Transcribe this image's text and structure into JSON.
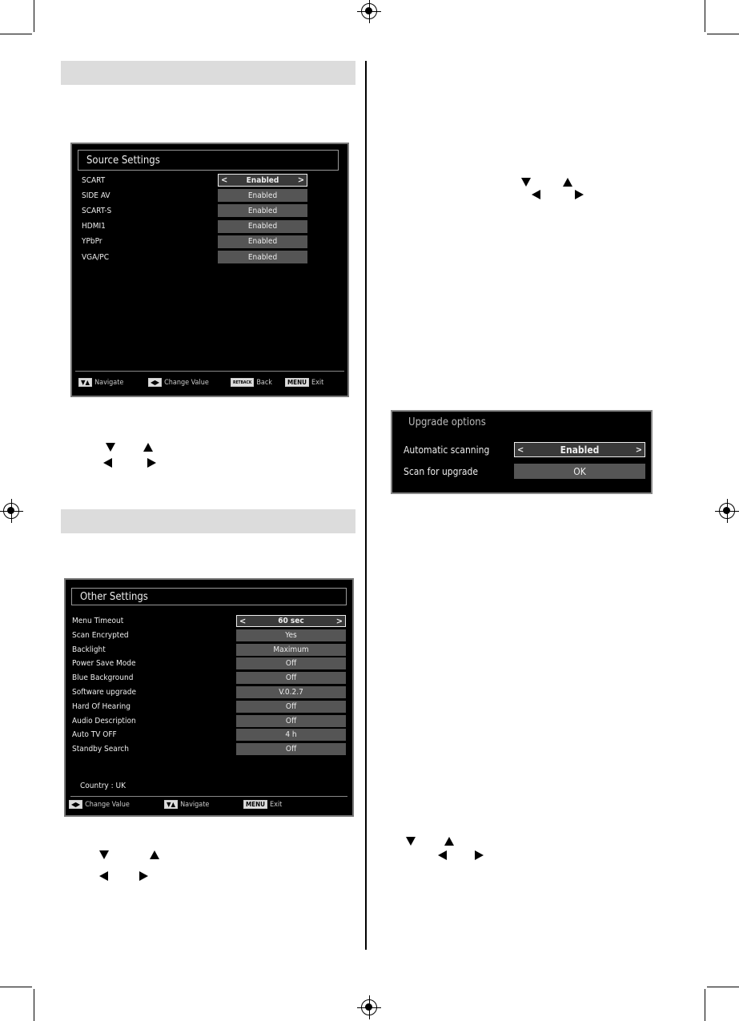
{
  "source_settings": {
    "title": "Source Settings",
    "items": [
      {
        "label": "SCART",
        "value": "Enabled",
        "selected": true
      },
      {
        "label": "SIDE AV",
        "value": "Enabled"
      },
      {
        "label": "SCART-S",
        "value": "Enabled"
      },
      {
        "label": "HDMI1",
        "value": "Enabled"
      },
      {
        "label": "YPbPr",
        "value": "Enabled"
      },
      {
        "label": "VGA/PC",
        "value": "Enabled"
      }
    ],
    "footer": {
      "navigate": "Navigate",
      "change_value": "Change Value",
      "back_key": "RETBACK",
      "back": "Back",
      "menu_key": "MENU",
      "exit": "Exit"
    }
  },
  "other_settings": {
    "title": "Other Settings",
    "items": [
      {
        "label": "Menu Timeout",
        "value": "60 sec",
        "selected": true
      },
      {
        "label": "Scan Encrypted",
        "value": "Yes"
      },
      {
        "label": "Backlight",
        "value": "Maximum"
      },
      {
        "label": "Power Save Mode",
        "value": "Off"
      },
      {
        "label": "Blue Background",
        "value": "Off"
      },
      {
        "label": "Software upgrade",
        "value": "V.0.2.7"
      },
      {
        "label": "Hard Of Hearing",
        "value": "Off"
      },
      {
        "label": "Audio Description",
        "value": "Off"
      },
      {
        "label": "Auto TV OFF",
        "value": "4 h"
      },
      {
        "label": "Standby Search",
        "value": "Off"
      }
    ],
    "country": "Country : UK",
    "footer": {
      "change_value": "Change Value",
      "navigate": "Navigate",
      "menu_key": "MENU",
      "exit": "Exit"
    }
  },
  "upgrade_options": {
    "title": "Upgrade options",
    "items": [
      {
        "label": "Automatic scanning",
        "value": "Enabled",
        "selected": true
      },
      {
        "label": "Scan for upgrade",
        "value": "OK"
      }
    ]
  },
  "chevrons": {
    "left": "<",
    "right": ">"
  }
}
